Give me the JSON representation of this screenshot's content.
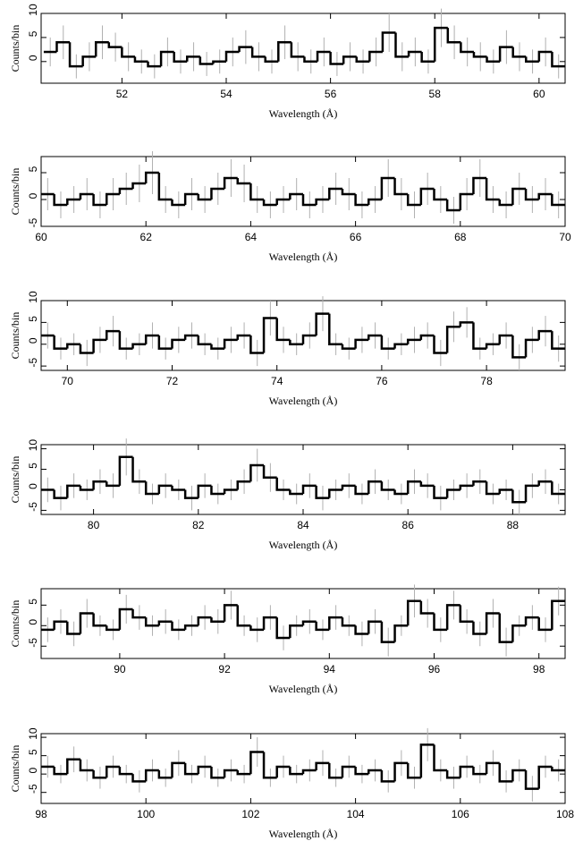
{
  "chart_data": [
    {
      "type": "histogram",
      "xlabel": "Wavelength (Å)",
      "ylabel": "Counts/bin",
      "color": "#000000",
      "error_color": "#b0b0b0",
      "xlim": [
        50.45,
        60.5
      ],
      "xticks": [
        52,
        54,
        56,
        58,
        60
      ],
      "ylim": [
        -4.5,
        10
      ],
      "yticks": [
        0,
        5,
        10
      ],
      "bins": [
        50.5,
        50.75,
        51,
        51.25,
        51.5,
        51.75,
        52,
        52.25,
        52.5,
        52.75,
        53,
        53.25,
        53.5,
        53.75,
        54,
        54.25,
        54.5,
        54.75,
        55,
        55.25,
        55.5,
        55.75,
        56,
        56.25,
        56.5,
        56.75,
        57,
        57.25,
        57.5,
        57.75,
        58,
        58.25,
        58.5,
        58.75,
        59,
        59.25,
        59.5,
        59.75,
        60,
        60.25,
        60.5
      ],
      "values": [
        2,
        4,
        -1,
        1,
        4,
        3,
        1,
        0,
        -1,
        2,
        0,
        1,
        -0.5,
        0,
        2,
        3,
        1,
        0,
        4,
        1,
        0,
        2,
        -0.5,
        1,
        0,
        2,
        6,
        1,
        2,
        0,
        7,
        4,
        2,
        1,
        0,
        3,
        1,
        0,
        2,
        -1
      ],
      "errors": [
        3,
        3.5,
        2.5,
        3,
        3.5,
        3,
        3,
        2.5,
        2.5,
        3,
        2.5,
        3,
        2.5,
        2.5,
        3,
        3.5,
        3,
        2.5,
        3.5,
        3,
        2.5,
        3,
        2.5,
        3,
        2.5,
        3,
        4,
        3,
        3,
        2.5,
        4,
        3.5,
        3,
        3,
        2.5,
        3.5,
        3,
        2.5,
        3,
        2.5
      ]
    },
    {
      "type": "histogram",
      "xlabel": "Wavelength (Å)",
      "ylabel": "Counts/bin",
      "color": "#000000",
      "error_color": "#b0b0b0",
      "xlim": [
        60,
        70
      ],
      "xticks": [
        60,
        62,
        64,
        66,
        68,
        70
      ],
      "ylim": [
        -5,
        8
      ],
      "yticks": [
        -5,
        0,
        5
      ],
      "bins": [
        60,
        60.25,
        60.5,
        60.75,
        61,
        61.25,
        61.5,
        61.75,
        62,
        62.25,
        62.5,
        62.75,
        63,
        63.25,
        63.5,
        63.75,
        64,
        64.25,
        64.5,
        64.75,
        65,
        65.25,
        65.5,
        65.75,
        66,
        66.25,
        66.5,
        66.75,
        67,
        67.25,
        67.5,
        67.75,
        68,
        68.25,
        68.5,
        68.75,
        69,
        69.25,
        69.5,
        69.75,
        70
      ],
      "values": [
        1,
        -1,
        0,
        1,
        -1,
        1,
        2,
        3,
        5,
        0,
        -1,
        1,
        0,
        2,
        4,
        3,
        0,
        -1,
        0,
        1,
        -1,
        0,
        2,
        1,
        -1,
        0,
        4,
        1,
        -1,
        2,
        0,
        -2,
        1,
        4,
        0,
        -1,
        2,
        0,
        1,
        -1
      ],
      "errors": [
        3,
        2.5,
        2.5,
        3,
        2.5,
        3,
        3,
        3.5,
        4,
        2.5,
        2.5,
        3,
        2.5,
        3,
        3.5,
        3.5,
        2.5,
        2.5,
        2.5,
        3,
        2.5,
        2.5,
        3,
        3,
        2.5,
        2.5,
        3.5,
        3,
        2.5,
        3,
        2.5,
        2.5,
        3,
        3.5,
        2.5,
        2.5,
        3,
        2.5,
        3,
        2.5
      ]
    },
    {
      "type": "histogram",
      "xlabel": "Wavelength (Å)",
      "ylabel": "Counts/bin",
      "color": "#000000",
      "error_color": "#b0b0b0",
      "xlim": [
        69.5,
        79.5
      ],
      "xticks": [
        70,
        72,
        74,
        76,
        78
      ],
      "ylim": [
        -6,
        10
      ],
      "yticks": [
        -5,
        0,
        5,
        10
      ],
      "bins": [
        69.5,
        69.75,
        70,
        70.25,
        70.5,
        70.75,
        71,
        71.25,
        71.5,
        71.75,
        72,
        72.25,
        72.5,
        72.75,
        73,
        73.25,
        73.5,
        73.75,
        74,
        74.25,
        74.5,
        74.75,
        75,
        75.25,
        75.5,
        75.75,
        76,
        76.25,
        76.5,
        76.75,
        77,
        77.25,
        77.5,
        77.75,
        78,
        78.25,
        78.5,
        78.75,
        79,
        79.25,
        79.5
      ],
      "values": [
        2,
        -1,
        0,
        -2,
        1,
        3,
        -1,
        0,
        2,
        -1,
        1,
        2,
        0,
        -1,
        1,
        2,
        -2,
        6,
        1,
        0,
        2,
        7,
        0,
        -1,
        1,
        2,
        -1,
        0,
        1,
        2,
        -2,
        4,
        5,
        -1,
        0,
        2,
        -3,
        1,
        3,
        -1
      ],
      "errors": [
        3,
        2.5,
        2.5,
        3,
        3,
        3.5,
        2.5,
        2.5,
        3,
        2.5,
        3,
        3,
        2.5,
        2.5,
        3,
        3,
        3,
        4,
        3,
        2.5,
        3,
        4,
        2.5,
        2.5,
        3,
        3,
        2.5,
        2.5,
        3,
        3,
        3,
        3.5,
        3.5,
        2.5,
        2.5,
        3,
        3,
        3,
        3.5,
        3
      ]
    },
    {
      "type": "histogram",
      "xlabel": "Wavelength (Å)",
      "ylabel": "Counts/bin",
      "color": "#000000",
      "error_color": "#b0b0b0",
      "xlim": [
        79,
        89
      ],
      "xticks": [
        80,
        82,
        84,
        86,
        88
      ],
      "ylim": [
        -6,
        11
      ],
      "yticks": [
        -5,
        0,
        5,
        10
      ],
      "bins": [
        79,
        79.25,
        79.5,
        79.75,
        80,
        80.25,
        80.5,
        80.75,
        81,
        81.25,
        81.5,
        81.75,
        82,
        82.25,
        82.5,
        82.75,
        83,
        83.25,
        83.5,
        83.75,
        84,
        84.25,
        84.5,
        84.75,
        85,
        85.25,
        85.5,
        85.75,
        86,
        86.25,
        86.5,
        86.75,
        87,
        87.25,
        87.5,
        87.75,
        88,
        88.25,
        88.5,
        88.75,
        89
      ],
      "values": [
        0,
        -2,
        1,
        0,
        2,
        1,
        8,
        2,
        -1,
        1,
        0,
        -2,
        1,
        -1,
        0,
        2,
        6,
        3,
        0,
        -1,
        1,
        -2,
        0,
        1,
        -1,
        2,
        0,
        -1,
        2,
        1,
        -2,
        0,
        1,
        2,
        -1,
        0,
        -3,
        1,
        2,
        -1
      ],
      "errors": [
        3,
        3,
        3,
        2.5,
        3,
        3,
        4.5,
        3,
        2.5,
        3,
        2.5,
        3,
        3,
        2.5,
        2.5,
        3,
        4,
        3.5,
        2.5,
        2.5,
        3,
        3,
        2.5,
        3,
        2.5,
        3,
        2.5,
        2.5,
        3,
        3,
        3,
        2.5,
        3,
        3,
        2.5,
        2.5,
        3,
        3,
        3,
        2.5
      ]
    },
    {
      "type": "histogram",
      "xlabel": "Wavelength (Å)",
      "ylabel": "Counts/bin",
      "color": "#000000",
      "error_color": "#b0b0b0",
      "xlim": [
        88.5,
        98.5
      ],
      "xticks": [
        90,
        92,
        94,
        96,
        98
      ],
      "ylim": [
        -8,
        9
      ],
      "yticks": [
        -5,
        0,
        5
      ],
      "bins": [
        88.5,
        88.75,
        89,
        89.25,
        89.5,
        89.75,
        90,
        90.25,
        90.5,
        90.75,
        91,
        91.25,
        91.5,
        91.75,
        92,
        92.25,
        92.5,
        92.75,
        93,
        93.25,
        93.5,
        93.75,
        94,
        94.25,
        94.5,
        94.75,
        95,
        95.25,
        95.5,
        95.75,
        96,
        96.25,
        96.5,
        96.75,
        97,
        97.25,
        97.5,
        97.75,
        98,
        98.25,
        98.5
      ],
      "values": [
        -1,
        1,
        -2,
        3,
        0,
        -1,
        4,
        2,
        0,
        1,
        -1,
        0,
        2,
        1,
        5,
        0,
        -1,
        2,
        -3,
        0,
        1,
        -1,
        2,
        0,
        -2,
        1,
        -4,
        0,
        6,
        3,
        -1,
        5,
        1,
        -2,
        3,
        -4,
        0,
        2,
        -1,
        6
      ],
      "errors": [
        3,
        3,
        3,
        3.5,
        2.5,
        2.5,
        3.5,
        3,
        2.5,
        3,
        2.5,
        2.5,
        3,
        3,
        3.5,
        2.5,
        3,
        3,
        3,
        2.5,
        3,
        2.5,
        3,
        2.5,
        3,
        3,
        3.5,
        2.5,
        4,
        3.5,
        3,
        3.5,
        3,
        3,
        3.5,
        3.5,
        2.5,
        3,
        3,
        3.5
      ]
    },
    {
      "type": "histogram",
      "xlabel": "Wavelength (Å)",
      "ylabel": "Counts/bin",
      "color": "#000000",
      "error_color": "#b0b0b0",
      "xlim": [
        98,
        108
      ],
      "xticks": [
        98,
        100,
        102,
        104,
        106,
        108
      ],
      "ylim": [
        -8,
        11
      ],
      "yticks": [
        -5,
        0,
        5,
        10
      ],
      "bins": [
        98,
        98.25,
        98.5,
        98.75,
        99,
        99.25,
        99.5,
        99.75,
        100,
        100.25,
        100.5,
        100.75,
        101,
        101.25,
        101.5,
        101.75,
        102,
        102.25,
        102.5,
        102.75,
        103,
        103.25,
        103.5,
        103.75,
        104,
        104.25,
        104.5,
        104.75,
        105,
        105.25,
        105.5,
        105.75,
        106,
        106.25,
        106.5,
        106.75,
        107,
        107.25,
        107.5,
        107.75,
        108
      ],
      "values": [
        2,
        0,
        4,
        1,
        -1,
        2,
        0,
        -2,
        1,
        -1,
        3,
        0,
        2,
        -1,
        1,
        0,
        6,
        -1,
        2,
        0,
        1,
        3,
        -1,
        2,
        0,
        1,
        -2,
        3,
        -1,
        8,
        1,
        -1,
        2,
        0,
        3,
        -2,
        1,
        -4,
        2,
        1
      ],
      "errors": [
        3,
        2.5,
        3.5,
        3,
        3,
        3,
        2.5,
        3,
        3,
        2.5,
        3.5,
        2.5,
        3,
        2.5,
        3,
        2.5,
        4,
        2.5,
        3,
        2.5,
        3,
        3.5,
        2.5,
        3,
        2.5,
        3,
        3,
        3.5,
        3,
        4.5,
        3,
        3,
        3,
        2.5,
        3.5,
        3,
        3,
        3.5,
        3,
        3
      ]
    }
  ]
}
